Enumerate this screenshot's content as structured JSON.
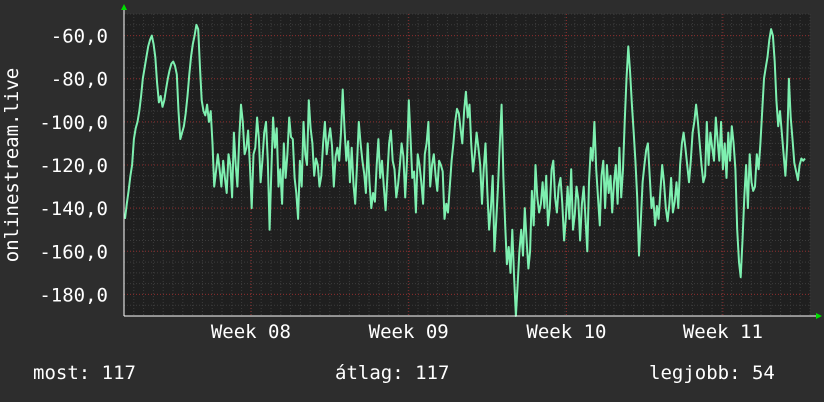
{
  "colors": {
    "background": "#2d2d2d",
    "plot_background": "#1f1f1f",
    "series": "#7ef0b0",
    "major_grid": "#8a2a2a",
    "minor_grid": "#3c3c3c",
    "axis_arrow": "#00dd00",
    "text": "#ffffff"
  },
  "chart_data": {
    "type": "line",
    "ylabel": "onlinestream.live",
    "ylim": [
      -190,
      -50
    ],
    "yticks": [
      -60,
      -80,
      -100,
      -120,
      -140,
      -160,
      -180
    ],
    "ytick_labels": [
      "-60,0",
      "-80,0",
      "-100,0",
      "-120,0",
      "-140,0",
      "-160,0",
      "-180,0"
    ],
    "xticks": [
      {
        "label": "Week 08",
        "frac": 0.185
      },
      {
        "label": "Week 09",
        "frac": 0.415
      },
      {
        "label": "Week 10",
        "frac": 0.645
      },
      {
        "label": "Week 11",
        "frac": 0.873
      }
    ],
    "grid": true,
    "series": [
      {
        "values": [
          -145,
          -138,
          -132,
          -125,
          -120,
          -108,
          -103,
          -100,
          -95,
          -88,
          -80,
          -75,
          -70,
          -65,
          -62,
          -60,
          -64,
          -70,
          -82,
          -91,
          -88,
          -93,
          -90,
          -85,
          -80,
          -76,
          -73,
          -72,
          -74,
          -78,
          -95,
          -108,
          -105,
          -102,
          -96,
          -88,
          -78,
          -70,
          -64,
          -60,
          -55,
          -57,
          -75,
          -90,
          -95,
          -97,
          -92,
          -100,
          -95,
          -110,
          -130,
          -123,
          -115,
          -122,
          -130,
          -118,
          -126,
          -133,
          -115,
          -120,
          -135,
          -105,
          -120,
          -130,
          -108,
          -92,
          -100,
          -115,
          -112,
          -104,
          -120,
          -140,
          -115,
          -112,
          -98,
          -108,
          -128,
          -118,
          -105,
          -100,
          -118,
          -150,
          -122,
          -98,
          -112,
          -103,
          -130,
          -122,
          -138,
          -110,
          -126,
          -115,
          -98,
          -107,
          -108,
          -126,
          -133,
          -145,
          -118,
          -130,
          -100,
          -115,
          -120,
          -90,
          -103,
          -110,
          -125,
          -117,
          -120,
          -130,
          -125,
          -110,
          -100,
          -115,
          -108,
          -103,
          -111,
          -130,
          -116,
          -112,
          -118,
          -105,
          -85,
          -103,
          -118,
          -109,
          -128,
          -112,
          -129,
          -138,
          -120,
          -100,
          -110,
          -118,
          -124,
          -133,
          -110,
          -128,
          -140,
          -133,
          -137,
          -120,
          -108,
          -126,
          -118,
          -130,
          -141,
          -125,
          -110,
          -104,
          -118,
          -122,
          -135,
          -129,
          -120,
          -110,
          -116,
          -135,
          -118,
          -90,
          -108,
          -126,
          -123,
          -142,
          -115,
          -120,
          -128,
          -138,
          -115,
          -110,
          -100,
          -130,
          -120,
          -115,
          -125,
          -132,
          -118,
          -120,
          -123,
          -145,
          -138,
          -142,
          -130,
          -118,
          -110,
          -100,
          -94,
          -96,
          -103,
          -110,
          -95,
          -86,
          -98,
          -92,
          -110,
          -123,
          -115,
          -105,
          -112,
          -120,
          -138,
          -122,
          -110,
          -132,
          -150,
          -140,
          -125,
          -160,
          -146,
          -130,
          -110,
          -92,
          -126,
          -148,
          -166,
          -158,
          -170,
          -150,
          -172,
          -190,
          -175,
          -160,
          -150,
          -162,
          -140,
          -155,
          -168,
          -160,
          -132,
          -148,
          -120,
          -135,
          -142,
          -138,
          -128,
          -140,
          -125,
          -148,
          -140,
          -122,
          -118,
          -135,
          -142,
          -130,
          -126,
          -138,
          -155,
          -145,
          -130,
          -145,
          -122,
          -150,
          -143,
          -130,
          -136,
          -155,
          -138,
          -130,
          -145,
          -160,
          -128,
          -112,
          -118,
          -100,
          -122,
          -135,
          -148,
          -125,
          -118,
          -140,
          -120,
          -133,
          -125,
          -142,
          -128,
          -120,
          -138,
          -112,
          -135,
          -122,
          -100,
          -80,
          -65,
          -77,
          -92,
          -105,
          -118,
          -135,
          -162,
          -146,
          -128,
          -120,
          -113,
          -110,
          -125,
          -140,
          -135,
          -148,
          -139,
          -145,
          -132,
          -120,
          -128,
          -140,
          -146,
          -138,
          -126,
          -142,
          -137,
          -128,
          -140,
          -120,
          -110,
          -105,
          -112,
          -120,
          -128,
          -118,
          -105,
          -100,
          -92,
          -100,
          -110,
          -120,
          -128,
          -125,
          -100,
          -120,
          -105,
          -112,
          -118,
          -98,
          -108,
          -118,
          -100,
          -122,
          -110,
          -126,
          -105,
          -118,
          -102,
          -110,
          -122,
          -150,
          -165,
          -172,
          -155,
          -135,
          -120,
          -140,
          -115,
          -128,
          -132,
          -130,
          -115,
          -122,
          -110,
          -95,
          -80,
          -75,
          -70,
          -62,
          -57,
          -60,
          -72,
          -90,
          -102,
          -95,
          -105,
          -115,
          -125,
          -110,
          -80,
          -98,
          -108,
          -119,
          -123,
          -127,
          -120,
          -117,
          -118,
          -117
        ]
      }
    ]
  },
  "legend": {
    "most": "most: 117",
    "atlag": "átlag: 117",
    "legjobb": "legjobb: 54"
  }
}
